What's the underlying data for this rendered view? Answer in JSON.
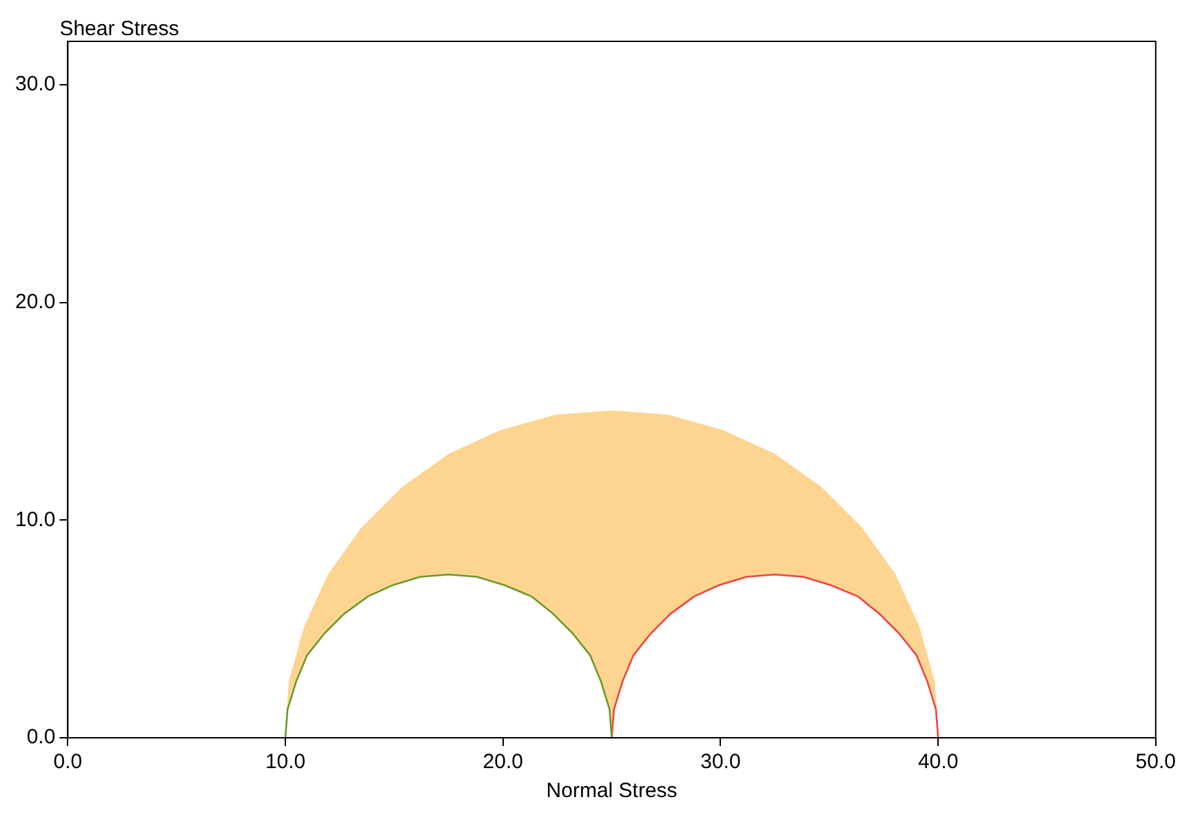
{
  "chart_data": {
    "type": "line",
    "xlabel": "Normal Stress",
    "ylabel": "Shear Stress",
    "xlim": [
      0,
      50
    ],
    "ylim": [
      0,
      32
    ],
    "xticks": [
      {
        "value": 0,
        "label": "0.0"
      },
      {
        "value": 10,
        "label": "10.0"
      },
      {
        "value": 20,
        "label": "20.0"
      },
      {
        "value": 30,
        "label": "30.0"
      },
      {
        "value": 40,
        "label": "40.0"
      },
      {
        "value": 50,
        "label": "50.0"
      }
    ],
    "yticks": [
      {
        "value": 0,
        "label": "0.0"
      },
      {
        "value": 10,
        "label": "10.0"
      },
      {
        "value": 20,
        "label": "20.0"
      },
      {
        "value": 30,
        "label": "30.0"
      }
    ],
    "grid": false,
    "legend": false,
    "marker": "none",
    "line_style": "solid",
    "series": [
      {
        "type": "area",
        "color": "#fdd591",
        "x": [
          10,
          10.2,
          10.9,
          12,
          13.5,
          15.4,
          17.5,
          19.9,
          22.4,
          25,
          27.6,
          30.1,
          32.5,
          34.6,
          36.5,
          38,
          39.1,
          39.8,
          40
        ],
        "values": [
          0,
          2.6,
          5.1,
          7.5,
          9.6,
          11.5,
          13,
          14.1,
          14.8,
          15,
          14.8,
          14.1,
          13,
          11.5,
          9.6,
          7.5,
          5.1,
          2.6,
          0
        ]
      },
      {
        "color": "#6a9a2a",
        "x": [
          10,
          10.1,
          10.5,
          11,
          11.8,
          12.7,
          13.8,
          14.9,
          16.2,
          17.5,
          18.8,
          20.1,
          21.3,
          22.3,
          23.2,
          24,
          24.5,
          24.9,
          25
        ],
        "values": [
          0,
          1.3,
          2.6,
          3.8,
          4.8,
          5.7,
          6.5,
          7,
          7.4,
          7.5,
          7.4,
          7,
          6.5,
          5.7,
          4.8,
          3.8,
          2.6,
          1.3,
          0
        ]
      },
      {
        "color": "#ee4444",
        "x": [
          25,
          25.1,
          25.5,
          26,
          26.8,
          27.7,
          28.8,
          29.9,
          31.2,
          32.5,
          33.8,
          35.1,
          36.3,
          37.3,
          38.2,
          39,
          39.5,
          39.9,
          40
        ],
        "values": [
          0,
          1.3,
          2.6,
          3.8,
          4.8,
          5.7,
          6.5,
          7,
          7.4,
          7.5,
          7.4,
          7,
          6.5,
          5.7,
          4.8,
          3.8,
          2.6,
          1.3,
          0
        ]
      }
    ]
  }
}
